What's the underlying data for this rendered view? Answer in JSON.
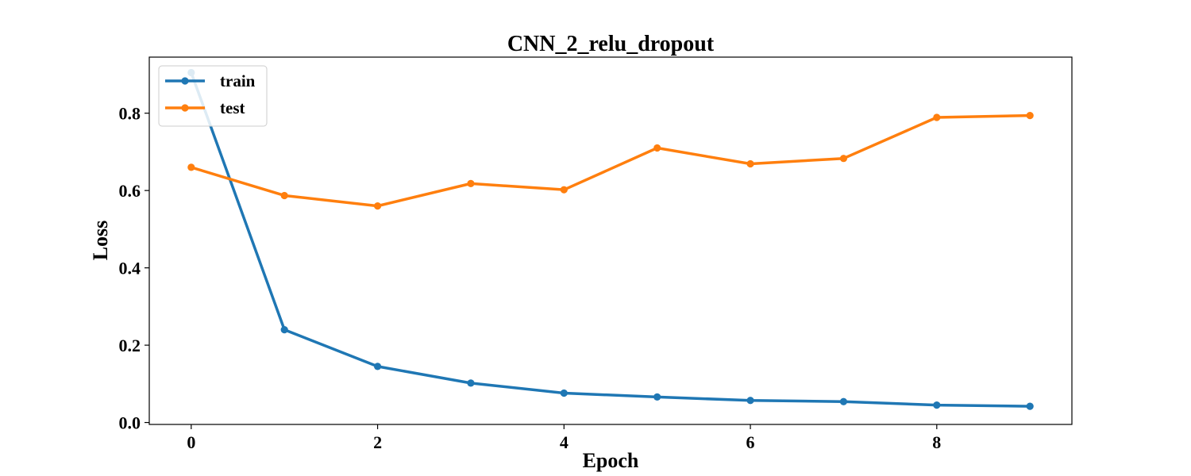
{
  "chart_data": {
    "type": "line",
    "title": "CNN_2_relu_dropout",
    "xlabel": "Epoch",
    "ylabel": "Loss",
    "xlim": [
      -0.45,
      9.45
    ],
    "ylim": [
      -0.005,
      0.945
    ],
    "x_ticks": [
      0,
      2,
      4,
      6,
      8
    ],
    "y_ticks": [
      0.0,
      0.2,
      0.4,
      0.6,
      0.8
    ],
    "x_tick_labels": [
      "0",
      "2",
      "4",
      "6",
      "8"
    ],
    "y_tick_labels": [
      "0.0",
      "0.2",
      "0.4",
      "0.6",
      "0.8"
    ],
    "grid": false,
    "legend_position": "top-left",
    "x": [
      0,
      1,
      2,
      3,
      4,
      5,
      6,
      7,
      8,
      9
    ],
    "series": [
      {
        "name": "train",
        "color": "#1f77b4",
        "values": [
          0.905,
          0.24,
          0.145,
          0.102,
          0.076,
          0.066,
          0.057,
          0.054,
          0.045,
          0.042
        ]
      },
      {
        "name": "test",
        "color": "#ff7f0e",
        "values": [
          0.66,
          0.587,
          0.56,
          0.618,
          0.602,
          0.71,
          0.669,
          0.683,
          0.789,
          0.794
        ]
      }
    ]
  }
}
